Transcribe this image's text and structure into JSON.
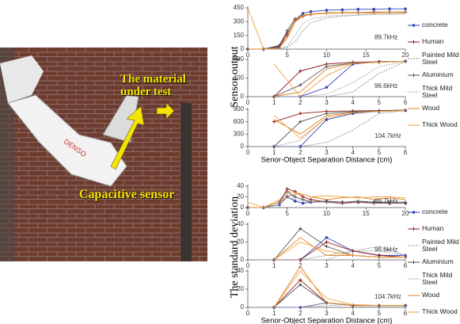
{
  "image": {
    "annotations": [
      "The material under test",
      "Capacitive sensor"
    ]
  },
  "chart_data": [
    {
      "type": "line",
      "annotation": "89.7kHz",
      "legend": "right",
      "x": [
        0,
        2,
        4,
        5,
        6,
        7,
        8,
        10,
        12,
        14,
        16,
        18,
        20
      ],
      "xlim": [
        0,
        20
      ],
      "xticks": [
        0,
        5,
        10,
        15,
        20
      ],
      "ylim": [
        0,
        450
      ],
      "yticks": [
        0,
        150,
        300,
        450
      ],
      "series": [
        {
          "name": "concrete",
          "color": "#3344bb",
          "marker": "circle",
          "dash": false,
          "values": [
            0,
            0,
            20,
            150,
            320,
            390,
            410,
            425,
            430,
            435,
            435,
            440,
            440
          ]
        },
        {
          "name": "Human",
          "color": "#8b1a1a",
          "marker": "plus",
          "dash": false,
          "values": [
            0,
            0,
            30,
            170,
            310,
            360,
            380,
            395,
            400,
            400,
            405,
            405,
            405
          ]
        },
        {
          "name": "Painted Mild Steel",
          "color": "#888888",
          "marker": "none",
          "dash": true,
          "values": [
            0,
            0,
            0,
            20,
            80,
            200,
            290,
            340,
            360,
            370,
            380,
            385,
            390
          ]
        },
        {
          "name": "Aluminium",
          "color": "#555555",
          "marker": "plus",
          "dash": false,
          "values": [
            0,
            0,
            40,
            200,
            330,
            370,
            385,
            395,
            400,
            400,
            400,
            405,
            405
          ]
        },
        {
          "name": "Thick Mild Steel",
          "color": "#a0a0a0",
          "marker": "none",
          "dash": true,
          "values": [
            0,
            0,
            0,
            30,
            150,
            280,
            330,
            360,
            370,
            375,
            380,
            380,
            385
          ]
        },
        {
          "name": "Wood",
          "color": "#e08020",
          "marker": "none",
          "dash": false,
          "values": [
            0,
            0,
            10,
            120,
            300,
            360,
            380,
            390,
            395,
            395,
            395,
            400,
            400
          ]
        },
        {
          "name": "Thick Wood",
          "color": "#f0a040",
          "marker": "none",
          "dash": false,
          "values": [
            450,
            0,
            10,
            150,
            320,
            370,
            385,
            395,
            400,
            400,
            400,
            405,
            405
          ]
        }
      ]
    },
    {
      "type": "line",
      "annotation": "96.6kHz",
      "ylabel": "Sensor output",
      "x": [
        1,
        2,
        3,
        4,
        5,
        6
      ],
      "xlim": [
        0,
        6
      ],
      "xticks": [
        0,
        1,
        2,
        3,
        4,
        5,
        6
      ],
      "ylim": [
        0,
        800
      ],
      "yticks": [
        0,
        400,
        800
      ],
      "series": [
        {
          "color": "#3344bb",
          "marker": "circle",
          "dash": false,
          "values": [
            0,
            0,
            200,
            700,
            750,
            760
          ]
        },
        {
          "color": "#8b1a1a",
          "marker": "plus",
          "dash": false,
          "values": [
            0,
            550,
            700,
            740,
            750,
            760
          ]
        },
        {
          "color": "#888888",
          "marker": "none",
          "dash": true,
          "values": [
            0,
            0,
            0,
            100,
            500,
            750
          ]
        },
        {
          "color": "#555555",
          "marker": "plus",
          "dash": false,
          "values": [
            0,
            250,
            650,
            720,
            740,
            760
          ]
        },
        {
          "color": "#a0a0a0",
          "marker": "none",
          "dash": true,
          "values": [
            0,
            0,
            50,
            300,
            650,
            750
          ]
        },
        {
          "color": "#e08020",
          "marker": "none",
          "dash": false,
          "values": [
            0,
            100,
            600,
            720,
            740,
            760
          ]
        },
        {
          "color": "#f0a040",
          "marker": "none",
          "dash": false,
          "values": [
            700,
            0,
            450,
            720,
            740,
            760
          ]
        }
      ]
    },
    {
      "type": "line",
      "annotation": "104.7kHz",
      "xlabel": "Senor-Object Separation Distance (cm)",
      "x": [
        1,
        2,
        3,
        4,
        5,
        6
      ],
      "xlim": [
        0,
        6
      ],
      "xticks": [
        0,
        1,
        2,
        3,
        4,
        5,
        6
      ],
      "ylim": [
        0,
        900
      ],
      "yticks": [
        0,
        300,
        600,
        900
      ],
      "series": [
        {
          "color": "#3344bb",
          "marker": "circle",
          "dash": false,
          "values": [
            0,
            0,
            650,
            800,
            850,
            870
          ]
        },
        {
          "color": "#8b1a1a",
          "marker": "plus",
          "dash": false,
          "values": [
            600,
            800,
            850,
            860,
            870,
            880
          ]
        },
        {
          "color": "#888888",
          "marker": "none",
          "dash": true,
          "values": [
            0,
            0,
            100,
            400,
            800,
            870
          ]
        },
        {
          "color": "#555555",
          "marker": "plus",
          "dash": false,
          "values": [
            0,
            600,
            800,
            840,
            860,
            880
          ]
        },
        {
          "color": "#a0a0a0",
          "marker": "none",
          "dash": true,
          "values": [
            0,
            150,
            700,
            820,
            850,
            870
          ]
        },
        {
          "color": "#e08020",
          "marker": "none",
          "dash": false,
          "values": [
            650,
            300,
            750,
            820,
            850,
            870
          ]
        },
        {
          "color": "#f0a040",
          "marker": "none",
          "dash": false,
          "values": [
            750,
            200,
            700,
            820,
            850,
            870
          ]
        }
      ]
    },
    {
      "type": "line",
      "annotation": "89.7kHz",
      "legend": "right",
      "x": [
        0,
        2,
        4,
        5,
        6,
        7,
        8,
        10,
        12,
        14,
        16,
        18,
        20
      ],
      "xlim": [
        0,
        20
      ],
      "xticks": [
        0,
        5,
        10,
        15,
        20
      ],
      "ylim": [
        0,
        40
      ],
      "yticks": [
        0,
        20,
        40
      ],
      "series": [
        {
          "name": "concrete",
          "color": "#3344bb",
          "marker": "circle",
          "dash": false,
          "values": [
            0,
            0,
            5,
            20,
            12,
            8,
            10,
            12,
            10,
            10,
            10,
            8,
            8
          ]
        },
        {
          "name": "Human",
          "color": "#8b1a1a",
          "marker": "plus",
          "dash": false,
          "values": [
            0,
            0,
            10,
            35,
            30,
            20,
            15,
            10,
            8,
            10,
            8,
            8,
            8
          ]
        },
        {
          "name": "Painted Mild Steel",
          "color": "#888888",
          "marker": "none",
          "dash": true,
          "values": [
            0,
            0,
            5,
            25,
            20,
            15,
            12,
            10,
            10,
            12,
            10,
            10,
            10
          ]
        },
        {
          "name": "Aluminium",
          "color": "#555555",
          "marker": "plus",
          "dash": false,
          "values": [
            0,
            0,
            10,
            30,
            20,
            15,
            10,
            12,
            10,
            12,
            10,
            10,
            10
          ]
        },
        {
          "name": "Thick Mild Steel",
          "color": "#a0a0a0",
          "marker": "none",
          "dash": true,
          "values": [
            0,
            0,
            5,
            20,
            15,
            12,
            10,
            10,
            10,
            10,
            8,
            8,
            8
          ]
        },
        {
          "name": "Wood",
          "color": "#e08020",
          "marker": "none",
          "dash": false,
          "values": [
            0,
            0,
            10,
            20,
            25,
            25,
            20,
            15,
            18,
            20,
            15,
            18,
            15
          ]
        },
        {
          "name": "Thick Wood",
          "color": "#f0a040",
          "marker": "none",
          "dash": false,
          "values": [
            10,
            0,
            15,
            30,
            28,
            25,
            20,
            22,
            20,
            18,
            20,
            20,
            18
          ]
        }
      ]
    },
    {
      "type": "line",
      "annotation": "96.6kHz",
      "ylabel": "The standard deviation",
      "x": [
        1,
        2,
        3,
        4,
        5,
        6
      ],
      "xlim": [
        0,
        6
      ],
      "xticks": [
        0,
        1,
        2,
        3,
        4,
        5,
        6
      ],
      "ylim": [
        0,
        40
      ],
      "yticks": [
        0,
        20,
        40
      ],
      "series": [
        {
          "color": "#3344bb",
          "marker": "circle",
          "dash": false,
          "values": [
            0,
            0,
            25,
            10,
            5,
            5
          ]
        },
        {
          "color": "#8b1a1a",
          "marker": "plus",
          "dash": false,
          "values": [
            0,
            0,
            20,
            10,
            5,
            3
          ]
        },
        {
          "color": "#888888",
          "marker": "none",
          "dash": true,
          "values": [
            0,
            0,
            5,
            10,
            15,
            5
          ]
        },
        {
          "color": "#555555",
          "marker": "plus",
          "dash": false,
          "values": [
            0,
            35,
            15,
            5,
            3,
            3
          ]
        },
        {
          "color": "#a0a0a0",
          "marker": "none",
          "dash": true,
          "values": [
            0,
            0,
            0,
            10,
            10,
            5
          ]
        },
        {
          "color": "#e08020",
          "marker": "none",
          "dash": false,
          "values": [
            0,
            25,
            5,
            5,
            3,
            3
          ]
        },
        {
          "color": "#f0a040",
          "marker": "none",
          "dash": false,
          "values": [
            0,
            20,
            10,
            5,
            3,
            3
          ]
        }
      ]
    },
    {
      "type": "line",
      "annotation": "104.7kHz",
      "xlabel": "Senor-Object Separation Distance (cm)",
      "x": [
        1,
        2,
        3,
        4,
        5,
        6
      ],
      "xlim": [
        0,
        6
      ],
      "xticks": [
        0,
        1,
        2,
        3,
        4,
        5,
        6
      ],
      "ylim": [
        0,
        40
      ],
      "yticks": [
        0,
        20,
        40
      ],
      "series": [
        {
          "color": "#3344bb",
          "marker": "circle",
          "dash": false,
          "values": [
            0,
            0,
            5,
            2,
            2,
            2
          ]
        },
        {
          "color": "#8b1a1a",
          "marker": "plus",
          "dash": false,
          "values": [
            0,
            30,
            5,
            2,
            2,
            2
          ]
        },
        {
          "color": "#888888",
          "marker": "none",
          "dash": true,
          "values": [
            0,
            0,
            2,
            3,
            2,
            2
          ]
        },
        {
          "color": "#555555",
          "marker": "plus",
          "dash": false,
          "values": [
            0,
            25,
            5,
            2,
            2,
            2
          ]
        },
        {
          "color": "#a0a0a0",
          "marker": "none",
          "dash": true,
          "values": [
            0,
            0,
            5,
            3,
            2,
            2
          ]
        },
        {
          "color": "#e08020",
          "marker": "none",
          "dash": false,
          "values": [
            0,
            45,
            5,
            2,
            2,
            2
          ]
        },
        {
          "color": "#f0a040",
          "marker": "none",
          "dash": false,
          "values": [
            0,
            40,
            10,
            3,
            2,
            2
          ]
        }
      ]
    }
  ]
}
